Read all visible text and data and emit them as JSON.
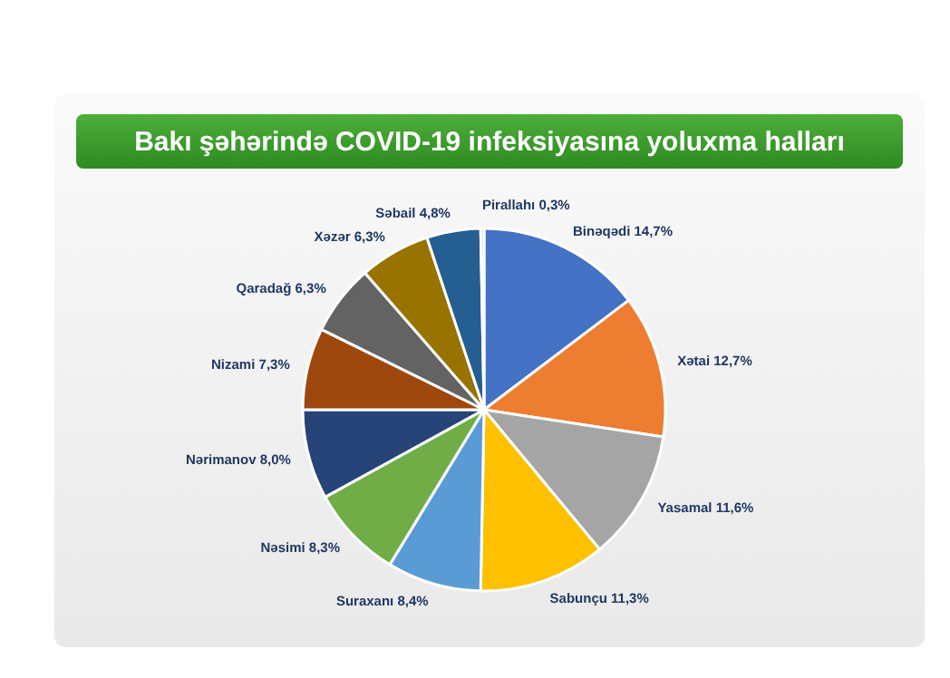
{
  "chart_data": {
    "type": "pie",
    "title": "Bakı şəhərində COVID-19 infeksiyasına yoluxma halları",
    "categories": [
      "Binəqədi",
      "Xətai",
      "Yasamal",
      "Sabunçu",
      "Suraxanı",
      "Nəsimi",
      "Nərimanov",
      "Nizami",
      "Qaradağ",
      "Xəzər",
      "Səbail",
      "Pirallahı"
    ],
    "values": [
      14.7,
      12.7,
      11.6,
      11.3,
      8.4,
      8.3,
      8.0,
      7.3,
      6.3,
      6.3,
      4.8,
      0.3
    ],
    "value_labels": [
      "14,7%",
      "12,7%",
      "11,6%",
      "11,3%",
      "8,4%",
      "8,3%",
      "8,0%",
      "7,3%",
      "6,3%",
      "6,3%",
      "4,8%",
      "0,3%"
    ],
    "colors": [
      "#4472c4",
      "#ed7d31",
      "#a5a5a5",
      "#ffc000",
      "#5b9bd5",
      "#70ad47",
      "#264478",
      "#9e480e",
      "#636363",
      "#997300",
      "#255e91",
      "#b7c7c7"
    ],
    "legend": false
  }
}
